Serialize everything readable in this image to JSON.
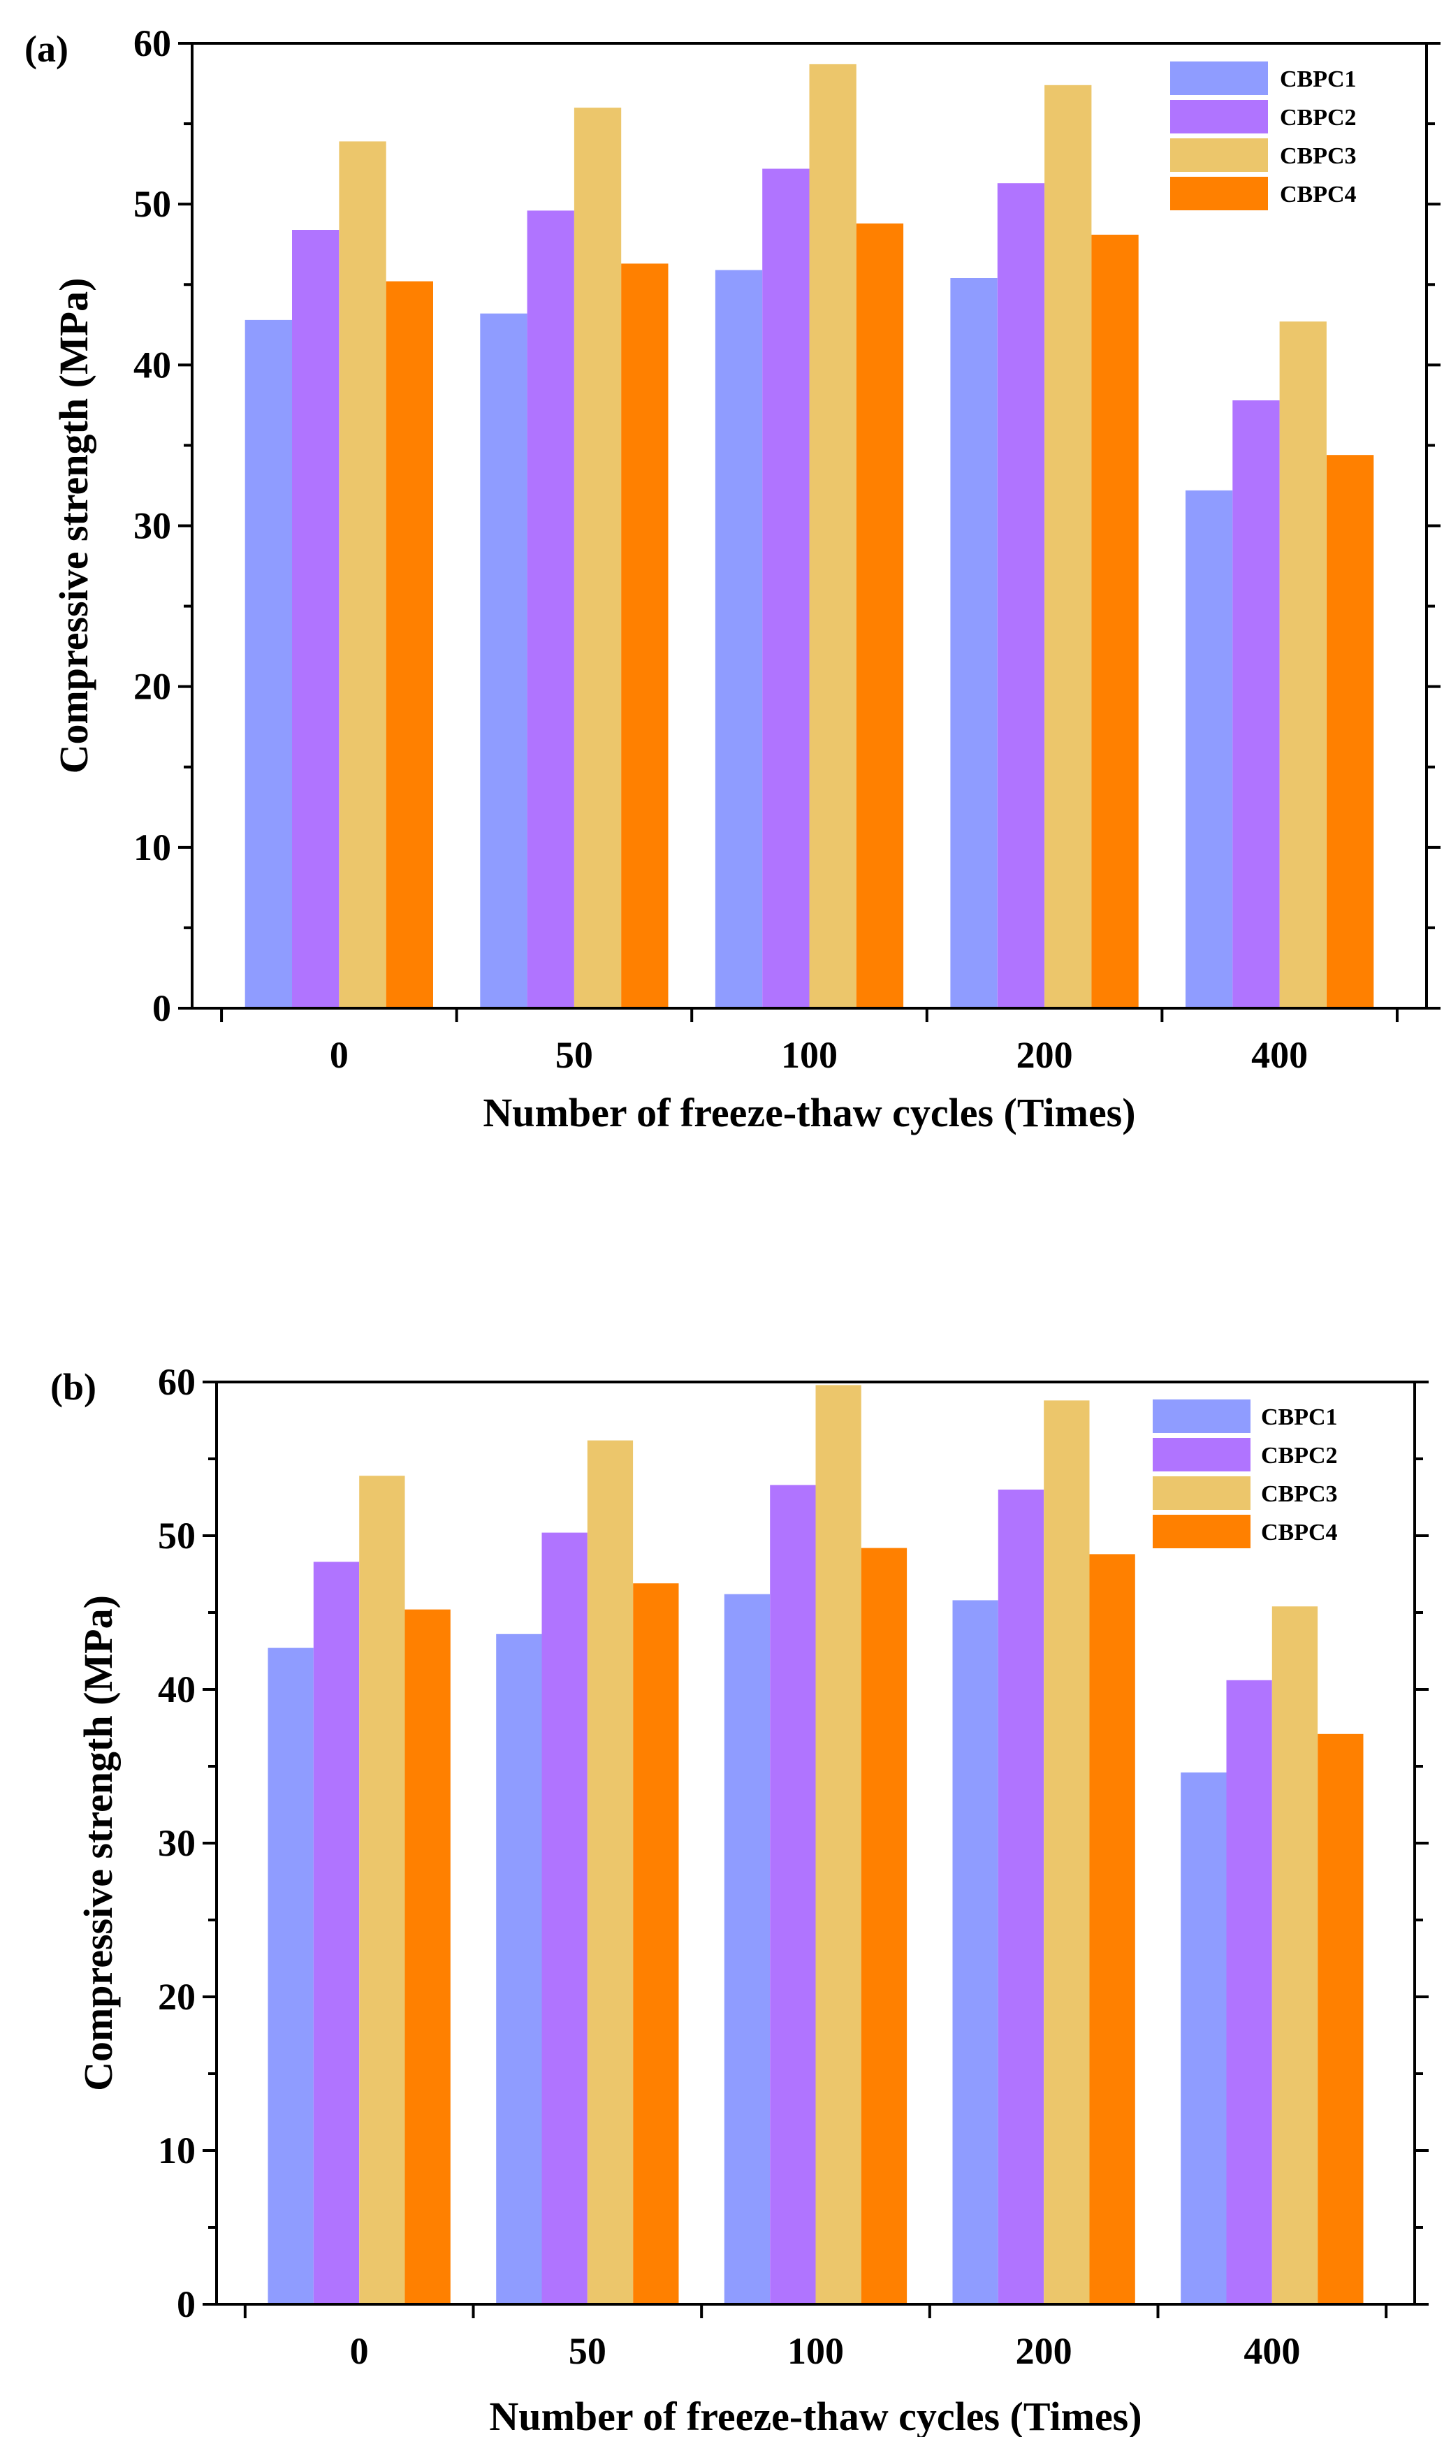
{
  "chart_data": [
    {
      "type": "bar",
      "panel_label": "(a)",
      "categories": [
        "0",
        "50",
        "100",
        "200",
        "400"
      ],
      "series": [
        {
          "name": "CBPC1",
          "color": "#8f9cff",
          "values": [
            42.8,
            43.2,
            45.9,
            45.4,
            32.2
          ]
        },
        {
          "name": "CBPC2",
          "color": "#b074ff",
          "values": [
            48.4,
            49.6,
            52.2,
            51.3,
            37.8
          ]
        },
        {
          "name": "CBPC3",
          "color": "#ecc66b",
          "values": [
            53.9,
            56.0,
            58.7,
            57.4,
            42.7
          ]
        },
        {
          "name": "CBPC4",
          "color": "#ff8000",
          "values": [
            45.2,
            46.3,
            48.8,
            48.1,
            34.4
          ]
        }
      ],
      "xlabel": "Number of freeze-thaw cycles (Times)",
      "ylabel": "Compressive strength (MPa)",
      "ylim": [
        0,
        60
      ],
      "yticks": [
        "0",
        "10",
        "20",
        "30",
        "40",
        "50",
        "60"
      ],
      "legend_position": "top-right",
      "grid": false
    },
    {
      "type": "bar",
      "panel_label": "(b)",
      "categories": [
        "0",
        "50",
        "100",
        "200",
        "400"
      ],
      "series": [
        {
          "name": "CBPC1",
          "color": "#8f9cff",
          "values": [
            42.7,
            43.6,
            46.2,
            45.8,
            34.6
          ]
        },
        {
          "name": "CBPC2",
          "color": "#b074ff",
          "values": [
            48.3,
            50.2,
            53.3,
            53.0,
            40.6
          ]
        },
        {
          "name": "CBPC3",
          "color": "#ecc66b",
          "values": [
            53.9,
            56.2,
            59.8,
            58.8,
            45.4
          ]
        },
        {
          "name": "CBPC4",
          "color": "#ff8000",
          "values": [
            45.2,
            46.9,
            49.2,
            48.8,
            37.1
          ]
        }
      ],
      "xlabel": "Number of freeze-thaw cycles (Times)",
      "ylabel": "Compressive strength (MPa)",
      "ylim": [
        0,
        60
      ],
      "yticks": [
        "0",
        "10",
        "20",
        "30",
        "40",
        "50",
        "60"
      ],
      "legend_position": "top-right",
      "grid": false
    }
  ]
}
